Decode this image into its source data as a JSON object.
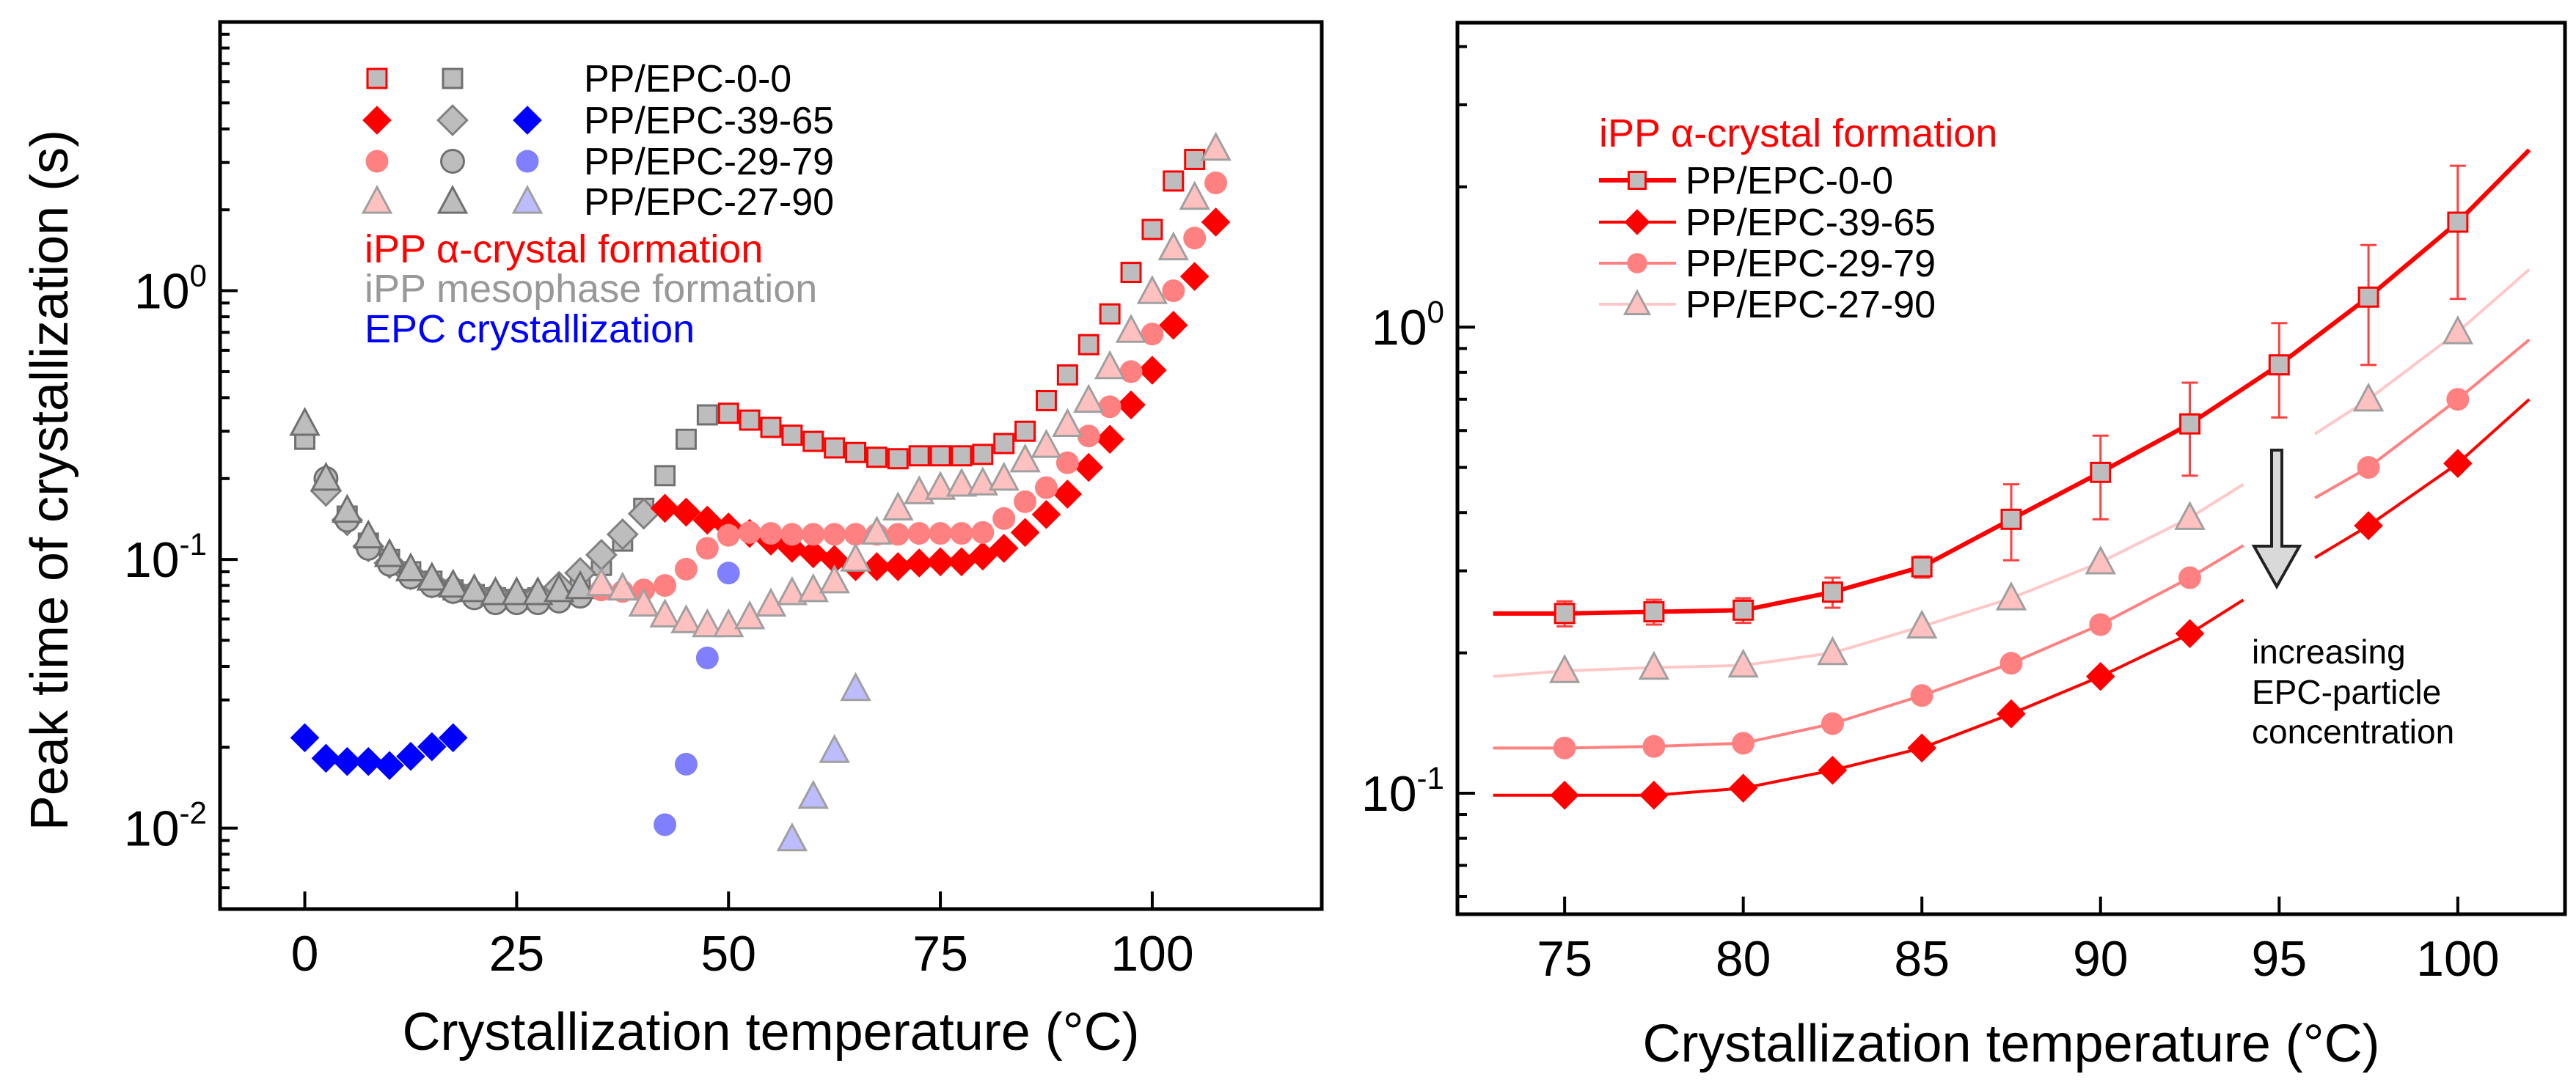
{
  "chart_data": [
    {
      "type": "scatter",
      "ylabel": "Peak time of crystallization (s)",
      "xlabel": "Crystallization temperature (°C)",
      "xlim": [
        -10,
        120
      ],
      "ylim": [
        0.005,
        10
      ],
      "yscale": "log",
      "grid": false,
      "xticks": [
        "0",
        "25",
        "50",
        "75",
        "100"
      ],
      "yticks": [
        {
          "base": "10",
          "exp": "-2",
          "value": 0.01
        },
        {
          "base": "10",
          "exp": "-1",
          "value": 0.1
        },
        {
          "base": "10",
          "exp": "0",
          "value": 1
        }
      ],
      "legend": {
        "placement": "top-left",
        "rows": [
          "PP/EPC-0-0",
          "PP/EPC-39-65",
          "PP/EPC-29-79",
          "PP/EPC-27-90"
        ],
        "groups": [
          {
            "label": "iPP α-crystal formation",
            "color": "#ff0000"
          },
          {
            "label": "iPP mesophase formation",
            "color": "#999999"
          },
          {
            "label": "EPC crystallization",
            "color": "#0000ff"
          }
        ]
      },
      "series": [
        {
          "sample": "PP/EPC-0-0",
          "group": "iPP mesophase formation",
          "marker": "square",
          "fill": "#bdbdbd",
          "stroke": "#707070",
          "x": [
            0,
            2.5,
            5,
            7.5,
            10,
            12.5,
            15,
            17.5,
            20,
            22.5,
            25,
            27.5,
            30,
            32.5,
            35,
            37.5,
            40,
            42.5,
            45,
            47.5
          ],
          "y": [
            0.28,
            0.19,
            0.145,
            0.115,
            0.1,
            0.09,
            0.083,
            0.077,
            0.074,
            0.072,
            0.071,
            0.072,
            0.074,
            0.079,
            0.095,
            0.117,
            0.155,
            0.205,
            0.28,
            0.345
          ]
        },
        {
          "sample": "PP/EPC-39-65",
          "group": "iPP mesophase formation",
          "marker": "diamond",
          "fill": "#bdbdbd",
          "stroke": "#808080",
          "x": [
            2.5,
            5,
            7.5,
            10,
            12.5,
            15,
            17.5,
            20,
            22.5,
            25,
            27.5,
            30,
            32.5,
            35,
            37.5,
            40
          ],
          "y": [
            0.18,
            0.14,
            0.112,
            0.097,
            0.088,
            0.082,
            0.078,
            0.075,
            0.073,
            0.072,
            0.073,
            0.079,
            0.089,
            0.104,
            0.124,
            0.148
          ]
        },
        {
          "sample": "PP/EPC-29-79",
          "group": "iPP mesophase formation",
          "marker": "circle",
          "fill": "#bdbdbd",
          "stroke": "#707070",
          "x": [
            2.5,
            5,
            7.5,
            10,
            12.5,
            15,
            17.5,
            20,
            22.5,
            25,
            27.5,
            30,
            32.5
          ],
          "y": [
            0.2,
            0.14,
            0.11,
            0.096,
            0.086,
            0.08,
            0.076,
            0.072,
            0.069,
            0.069,
            0.069,
            0.07,
            0.073
          ]
        },
        {
          "sample": "PP/EPC-27-90",
          "group": "iPP mesophase formation",
          "marker": "triangle",
          "fill": "#bdbdbd",
          "stroke": "#707070",
          "x": [
            0,
            2.5,
            5,
            7.5,
            10,
            12.5,
            15,
            17.5,
            20,
            22.5,
            25,
            27.5,
            30,
            32.5
          ],
          "y": [
            0.32,
            0.2,
            0.152,
            0.122,
            0.104,
            0.092,
            0.085,
            0.08,
            0.077,
            0.075,
            0.075,
            0.075,
            0.077,
            0.079
          ]
        },
        {
          "sample": "PP/EPC-0-0",
          "group": "iPP α-crystal formation",
          "marker": "square",
          "fill": "#bdbdbd",
          "stroke": "#ff0000",
          "x": [
            50,
            52.5,
            55,
            57.5,
            60,
            62.5,
            65,
            67.5,
            70,
            72.5,
            75,
            77.5,
            80,
            82.5,
            85,
            87.5,
            90,
            92.5,
            95,
            97.5,
            100,
            102.5,
            105
          ],
          "y": [
            0.35,
            0.33,
            0.31,
            0.29,
            0.275,
            0.26,
            0.25,
            0.24,
            0.237,
            0.243,
            0.243,
            0.243,
            0.246,
            0.27,
            0.3,
            0.39,
            0.486,
            0.63,
            0.82,
            1.17,
            1.69,
            2.56,
            3.08
          ]
        },
        {
          "sample": "PP/EPC-39-65",
          "group": "iPP α-crystal formation",
          "marker": "diamond",
          "fill": "#ff0000",
          "stroke": "none",
          "x": [
            42.5,
            45,
            47.5,
            50,
            52.5,
            55,
            57.5,
            60,
            62.5,
            65,
            67.5,
            70,
            72.5,
            75,
            77.5,
            80,
            82.5,
            85,
            87.5,
            90,
            92.5,
            95,
            97.5,
            100,
            102.5,
            105,
            107.5
          ],
          "y": [
            0.155,
            0.15,
            0.14,
            0.132,
            0.125,
            0.117,
            0.11,
            0.105,
            0.1,
            0.094,
            0.094,
            0.094,
            0.097,
            0.098,
            0.098,
            0.103,
            0.11,
            0.126,
            0.147,
            0.175,
            0.22,
            0.28,
            0.376,
            0.506,
            0.744,
            1.13,
            1.8
          ]
        },
        {
          "sample": "PP/EPC-29-79",
          "group": "iPP α-crystal formation",
          "marker": "circle",
          "fill": "#ff8080",
          "stroke": "none",
          "x": [
            35,
            37.5,
            40,
            42.5,
            45,
            47.5,
            50,
            52.5,
            55,
            57.5,
            60,
            62.5,
            65,
            67.5,
            70,
            72.5,
            75,
            77.5,
            80,
            82.5,
            85,
            87.5,
            90,
            92.5,
            95,
            97.5,
            100,
            102.5,
            105,
            107.5
          ],
          "y": [
            0.077,
            0.076,
            0.077,
            0.08,
            0.092,
            0.11,
            0.123,
            0.126,
            0.125,
            0.124,
            0.124,
            0.124,
            0.124,
            0.124,
            0.124,
            0.125,
            0.125,
            0.125,
            0.126,
            0.142,
            0.164,
            0.185,
            0.229,
            0.288,
            0.37,
            0.5,
            0.69,
            1.0,
            1.57,
            2.52
          ]
        },
        {
          "sample": "PP/EPC-27-90",
          "group": "iPP α-crystal formation",
          "marker": "triangle",
          "fill": "#ffc0c0",
          "stroke": "#a0a0a0",
          "x": [
            35,
            37.5,
            40,
            42.5,
            45,
            47.5,
            50,
            52.5,
            55,
            57.5,
            60,
            62.5,
            65,
            67.5,
            70,
            72.5,
            75,
            77.5,
            80,
            82.5,
            85,
            87.5,
            90,
            92.5,
            95,
            97.5,
            100,
            102.5,
            105,
            107.5
          ],
          "y": [
            0.081,
            0.078,
            0.068,
            0.062,
            0.059,
            0.057,
            0.057,
            0.061,
            0.068,
            0.075,
            0.077,
            0.083,
            0.1,
            0.126,
            0.155,
            0.178,
            0.185,
            0.19,
            0.192,
            0.2,
            0.234,
            0.265,
            0.317,
            0.39,
            0.52,
            0.71,
            0.99,
            1.44,
            2.22,
            3.38
          ]
        },
        {
          "sample": "PP/EPC-39-65",
          "group": "EPC crystallization",
          "marker": "diamond",
          "fill": "#0000ff",
          "stroke": "none",
          "x": [
            0,
            2.5,
            5,
            7.5,
            10,
            12.5,
            15,
            17.5
          ],
          "y": [
            0.0217,
            0.0182,
            0.0177,
            0.0177,
            0.0171,
            0.0185,
            0.0201,
            0.0217
          ]
        },
        {
          "sample": "PP/EPC-29-79",
          "group": "EPC crystallization",
          "marker": "circle",
          "fill": "#8080ff",
          "stroke": "none",
          "x": [
            42.5,
            45,
            47.5,
            50
          ],
          "y": [
            0.0103,
            0.0173,
            0.043,
            0.089
          ]
        },
        {
          "sample": "PP/EPC-27-90",
          "group": "EPC crystallization",
          "marker": "triangle",
          "fill": "#bcbcff",
          "stroke": "#a0a0a0",
          "x": [
            57.5,
            60,
            62.5,
            65
          ],
          "y": [
            0.0091,
            0.0131,
            0.0194,
            0.033
          ]
        }
      ]
    },
    {
      "type": "line",
      "xlabel": "Crystallization temperature (°C)",
      "xlim": [
        72,
        103
      ],
      "ylim": [
        0.055,
        4.5
      ],
      "yscale": "log",
      "grid": false,
      "xticks": [
        "75",
        "80",
        "85",
        "90",
        "95",
        "100"
      ],
      "yticks": [
        {
          "base": "10",
          "exp": "-1",
          "value": 0.1
        },
        {
          "base": "10",
          "exp": "0",
          "value": 1
        }
      ],
      "legend": {
        "placement": "top-left",
        "title": "iPP α-crystal formation",
        "title_color": "#ff0000"
      },
      "annotation": {
        "lines": [
          "increasing",
          "EPC-particle",
          "concentration"
        ],
        "arrow": "down-arrow-icon",
        "arrow_fill": "#d9d9d9"
      },
      "series": [
        {
          "name": "PP/EPC-0-0",
          "marker": "square",
          "fill": "#bdbdbd",
          "stroke": "#ff0000",
          "line": "#ff0000",
          "x": [
            75,
            77.5,
            80,
            82.5,
            85,
            87.5,
            90,
            92.5,
            95,
            97.5,
            100
          ],
          "y": [
            0.243,
            0.245,
            0.247,
            0.27,
            0.306,
            0.387,
            0.488,
            0.62,
            0.83,
            1.16,
            1.68
          ],
          "err_low": [
            0.228,
            0.23,
            0.232,
            0.25,
            0.29,
            0.316,
            0.387,
            0.48,
            0.64,
            0.83,
            1.15
          ],
          "err_high": [
            0.258,
            0.26,
            0.262,
            0.29,
            0.322,
            0.46,
            0.585,
            0.76,
            1.02,
            1.5,
            2.22
          ],
          "fit": [
            [
              [
                73,
                0.243
              ],
              [
                75,
                0.243
              ],
              [
                77.5,
                0.245
              ],
              [
                80,
                0.247
              ],
              [
                82.5,
                0.27
              ],
              [
                85,
                0.306
              ],
              [
                87.5,
                0.387
              ],
              [
                90,
                0.488
              ],
              [
                92.5,
                0.62
              ],
              [
                95,
                0.83
              ],
              [
                97.5,
                1.16
              ],
              [
                100,
                1.68
              ],
              [
                102,
                2.4
              ]
            ]
          ]
        },
        {
          "name": "PP/EPC-39-65",
          "marker": "diamond",
          "fill": "#ff0000",
          "stroke": "none",
          "line": "#ff0000",
          "x": [
            75,
            77.5,
            80,
            82.5,
            85,
            87.5,
            90,
            92.5,
            97.5,
            100
          ],
          "y": [
            0.099,
            0.099,
            0.1025,
            0.112,
            0.125,
            0.148,
            0.178,
            0.22,
            0.375,
            0.51
          ],
          "fit": [
            [
              [
                73,
                0.099
              ],
              [
                75,
                0.099
              ],
              [
                77.5,
                0.099
              ],
              [
                80,
                0.1025
              ],
              [
                82.5,
                0.112
              ],
              [
                85,
                0.125
              ],
              [
                87.5,
                0.148
              ],
              [
                90,
                0.178
              ],
              [
                92.5,
                0.22
              ],
              [
                94,
                0.26
              ]
            ],
            [
              [
                96,
                0.32
              ],
              [
                97.5,
                0.375
              ],
              [
                100,
                0.51
              ],
              [
                102,
                0.7
              ]
            ]
          ]
        },
        {
          "name": "PP/EPC-29-79",
          "marker": "circle",
          "fill": "#ff8080",
          "stroke": "none",
          "line": "#ff8080",
          "x": [
            75,
            77.5,
            80,
            82.5,
            85,
            87.5,
            90,
            92.5,
            97.5,
            100
          ],
          "y": [
            0.125,
            0.126,
            0.128,
            0.141,
            0.162,
            0.19,
            0.23,
            0.29,
            0.5,
            0.7
          ],
          "fit": [
            [
              [
                73,
                0.125
              ],
              [
                75,
                0.125
              ],
              [
                77.5,
                0.126
              ],
              [
                80,
                0.128
              ],
              [
                82.5,
                0.141
              ],
              [
                85,
                0.162
              ],
              [
                87.5,
                0.19
              ],
              [
                90,
                0.23
              ],
              [
                92.5,
                0.29
              ],
              [
                94,
                0.34
              ]
            ],
            [
              [
                96,
                0.43
              ],
              [
                97.5,
                0.5
              ],
              [
                100,
                0.7
              ],
              [
                102,
                0.94
              ]
            ]
          ]
        },
        {
          "name": "PP/EPC-27-90",
          "marker": "triangle",
          "fill": "#ffc0c0",
          "stroke": "#a0a0a0",
          "line": "#ffc8c8",
          "x": [
            75,
            77.5,
            80,
            82.5,
            85,
            87.5,
            90,
            92.5,
            97.5,
            100
          ],
          "y": [
            0.183,
            0.186,
            0.188,
            0.2,
            0.228,
            0.262,
            0.313,
            0.39,
            0.7,
            0.976
          ],
          "fit": [
            [
              [
                73,
                0.178
              ],
              [
                75,
                0.183
              ],
              [
                77.5,
                0.186
              ],
              [
                80,
                0.188
              ],
              [
                82.5,
                0.2
              ],
              [
                85,
                0.228
              ],
              [
                87.5,
                0.262
              ],
              [
                90,
                0.313
              ],
              [
                92.5,
                0.39
              ],
              [
                94,
                0.46
              ]
            ],
            [
              [
                96,
                0.59
              ],
              [
                97.5,
                0.7
              ],
              [
                100,
                0.976
              ],
              [
                102,
                1.33
              ]
            ]
          ]
        }
      ]
    }
  ]
}
